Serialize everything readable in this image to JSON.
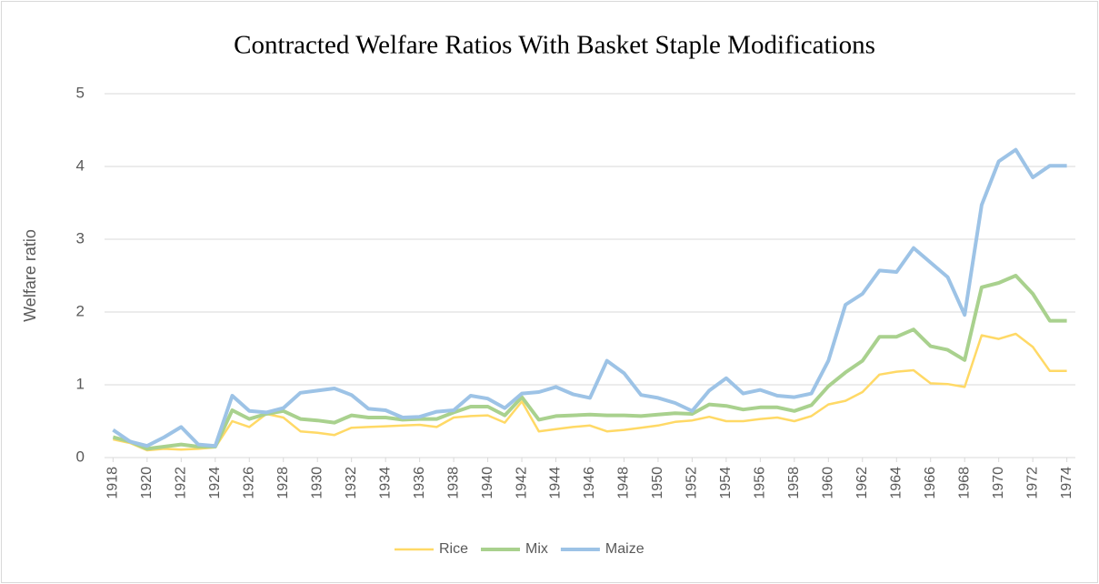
{
  "chart_data": {
    "type": "line",
    "title": "Contracted Welfare Ratios With Basket Staple Modifications",
    "y_label": "Welfare ratio",
    "x": [
      1918,
      1919,
      1920,
      1921,
      1922,
      1923,
      1924,
      1925,
      1926,
      1927,
      1928,
      1929,
      1930,
      1931,
      1932,
      1933,
      1934,
      1935,
      1936,
      1937,
      1938,
      1939,
      1940,
      1941,
      1942,
      1943,
      1944,
      1945,
      1946,
      1947,
      1948,
      1949,
      1950,
      1951,
      1952,
      1953,
      1954,
      1955,
      1956,
      1957,
      1958,
      1959,
      1960,
      1961,
      1962,
      1963,
      1964,
      1965,
      1966,
      1967,
      1968,
      1969,
      1970,
      1971,
      1972,
      1973,
      1974
    ],
    "xlim": [
      1917.5,
      1974.5
    ],
    "xticks": [
      1918,
      1920,
      1922,
      1924,
      1926,
      1928,
      1930,
      1932,
      1934,
      1936,
      1938,
      1940,
      1942,
      1944,
      1946,
      1948,
      1950,
      1952,
      1954,
      1956,
      1958,
      1960,
      1962,
      1964,
      1966,
      1968,
      1970,
      1972,
      1974
    ],
    "ylim": [
      0,
      5
    ],
    "yticks": [
      0,
      1,
      2,
      3,
      4,
      5
    ],
    "grid": true,
    "legend": "bottom",
    "series": [
      {
        "name": "Rice",
        "color": "#ffd966",
        "values": [
          0.25,
          0.2,
          0.1,
          0.12,
          0.11,
          0.12,
          0.14,
          0.5,
          0.42,
          0.6,
          0.55,
          0.36,
          0.34,
          0.31,
          0.41,
          0.42,
          0.43,
          0.44,
          0.45,
          0.42,
          0.55,
          0.57,
          0.58,
          0.48,
          0.77,
          0.36,
          0.39,
          0.42,
          0.44,
          0.36,
          0.38,
          0.41,
          0.44,
          0.49,
          0.51,
          0.56,
          0.5,
          0.5,
          0.53,
          0.55,
          0.5,
          0.57,
          0.73,
          0.78,
          0.9,
          1.14,
          1.18,
          1.2,
          1.02,
          1.01,
          0.97,
          1.68,
          1.63,
          1.7,
          1.52,
          1.19,
          1.19
        ]
      },
      {
        "name": "Mix",
        "color": "#a9d18e",
        "values": [
          0.28,
          0.22,
          0.12,
          0.15,
          0.18,
          0.15,
          0.15,
          0.65,
          0.53,
          0.6,
          0.64,
          0.53,
          0.51,
          0.48,
          0.58,
          0.55,
          0.55,
          0.52,
          0.53,
          0.53,
          0.62,
          0.7,
          0.7,
          0.58,
          0.83,
          0.52,
          0.57,
          0.58,
          0.59,
          0.58,
          0.58,
          0.57,
          0.59,
          0.61,
          0.6,
          0.73,
          0.71,
          0.66,
          0.69,
          0.69,
          0.64,
          0.72,
          0.98,
          1.17,
          1.33,
          1.66,
          1.66,
          1.76,
          1.53,
          1.48,
          1.34,
          2.34,
          2.4,
          2.5,
          2.25,
          1.88,
          1.88
        ]
      },
      {
        "name": "Maize",
        "color": "#9dc3e6",
        "values": [
          0.38,
          0.22,
          0.16,
          0.28,
          0.42,
          0.18,
          0.16,
          0.85,
          0.64,
          0.62,
          0.68,
          0.89,
          0.92,
          0.95,
          0.86,
          0.67,
          0.65,
          0.55,
          0.56,
          0.63,
          0.65,
          0.85,
          0.81,
          0.68,
          0.88,
          0.9,
          0.97,
          0.87,
          0.82,
          1.33,
          1.16,
          0.86,
          0.82,
          0.75,
          0.64,
          0.92,
          1.09,
          0.88,
          0.93,
          0.85,
          0.83,
          0.88,
          1.33,
          2.1,
          2.25,
          2.57,
          2.55,
          2.88,
          2.68,
          2.48,
          1.96,
          3.47,
          4.07,
          4.23,
          3.85,
          4.01,
          4.01
        ]
      }
    ]
  }
}
